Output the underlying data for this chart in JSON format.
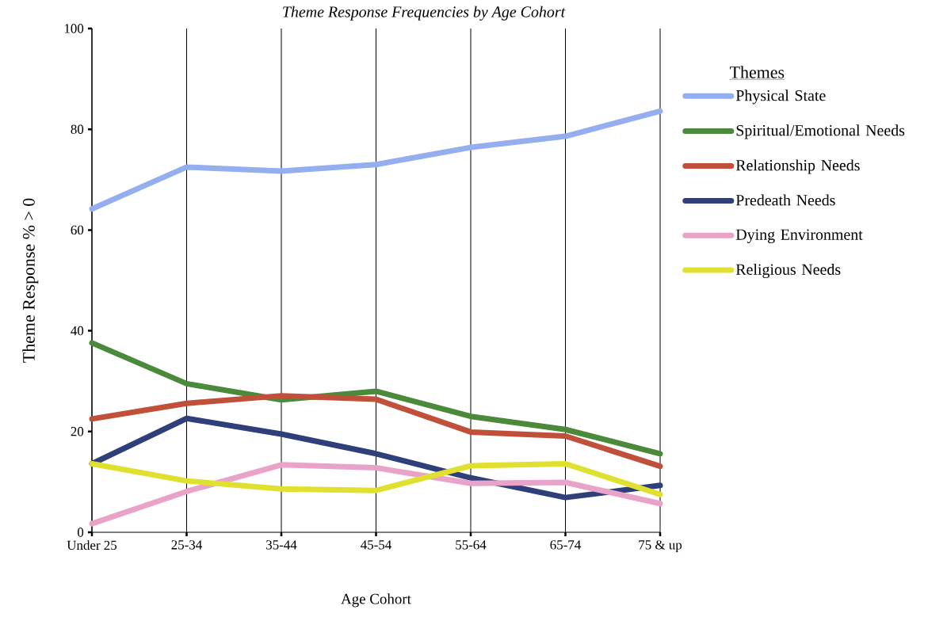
{
  "chart_data": {
    "type": "line",
    "title": "Theme Response Frequencies by Age Cohort",
    "xlabel": "Age Cohort",
    "ylabel": "Theme Response % > 0",
    "legend_title": "Themes",
    "categories": [
      "Under 25",
      "25-34",
      "35-44",
      "45-54",
      "55-64",
      "65-74",
      "75 & up"
    ],
    "series": [
      {
        "name": "Physical State",
        "color": "#94aef0",
        "values": [
          64.2,
          72.5,
          71.7,
          73,
          76.4,
          78.6,
          83.6
        ]
      },
      {
        "name": "Spiritual/Emotional Needs",
        "color": "#4a8a3a",
        "values": [
          37.6,
          29.5,
          26.3,
          28.0,
          23.0,
          20.4,
          15.6
        ]
      },
      {
        "name": "Relationship Needs",
        "color": "#c0503a",
        "values": [
          22.5,
          25.6,
          27.1,
          26.4,
          19.9,
          19.1,
          13.1
        ]
      },
      {
        "name": "Predeath Needs",
        "color": "#2e3f7a",
        "values": [
          13.6,
          22.6,
          19.5,
          15.6,
          10.8,
          6.9,
          9.3
        ]
      },
      {
        "name": "Dying Environment",
        "color": "#e9a3c9",
        "values": [
          1.7,
          8.1,
          13.4,
          12.8,
          9.7,
          9.9,
          5.7
        ]
      },
      {
        "name": "Religious Needs",
        "color": "#e0e030",
        "values": [
          13.6,
          10.2,
          8.6,
          8.3,
          13.2,
          13.6,
          7.5
        ]
      }
    ],
    "ylim": [
      0,
      100
    ],
    "yticks": [
      0,
      20,
      40,
      60,
      80,
      100
    ],
    "grid": "x",
    "legend": "right",
    "marker": "none",
    "line_style": "solid"
  }
}
